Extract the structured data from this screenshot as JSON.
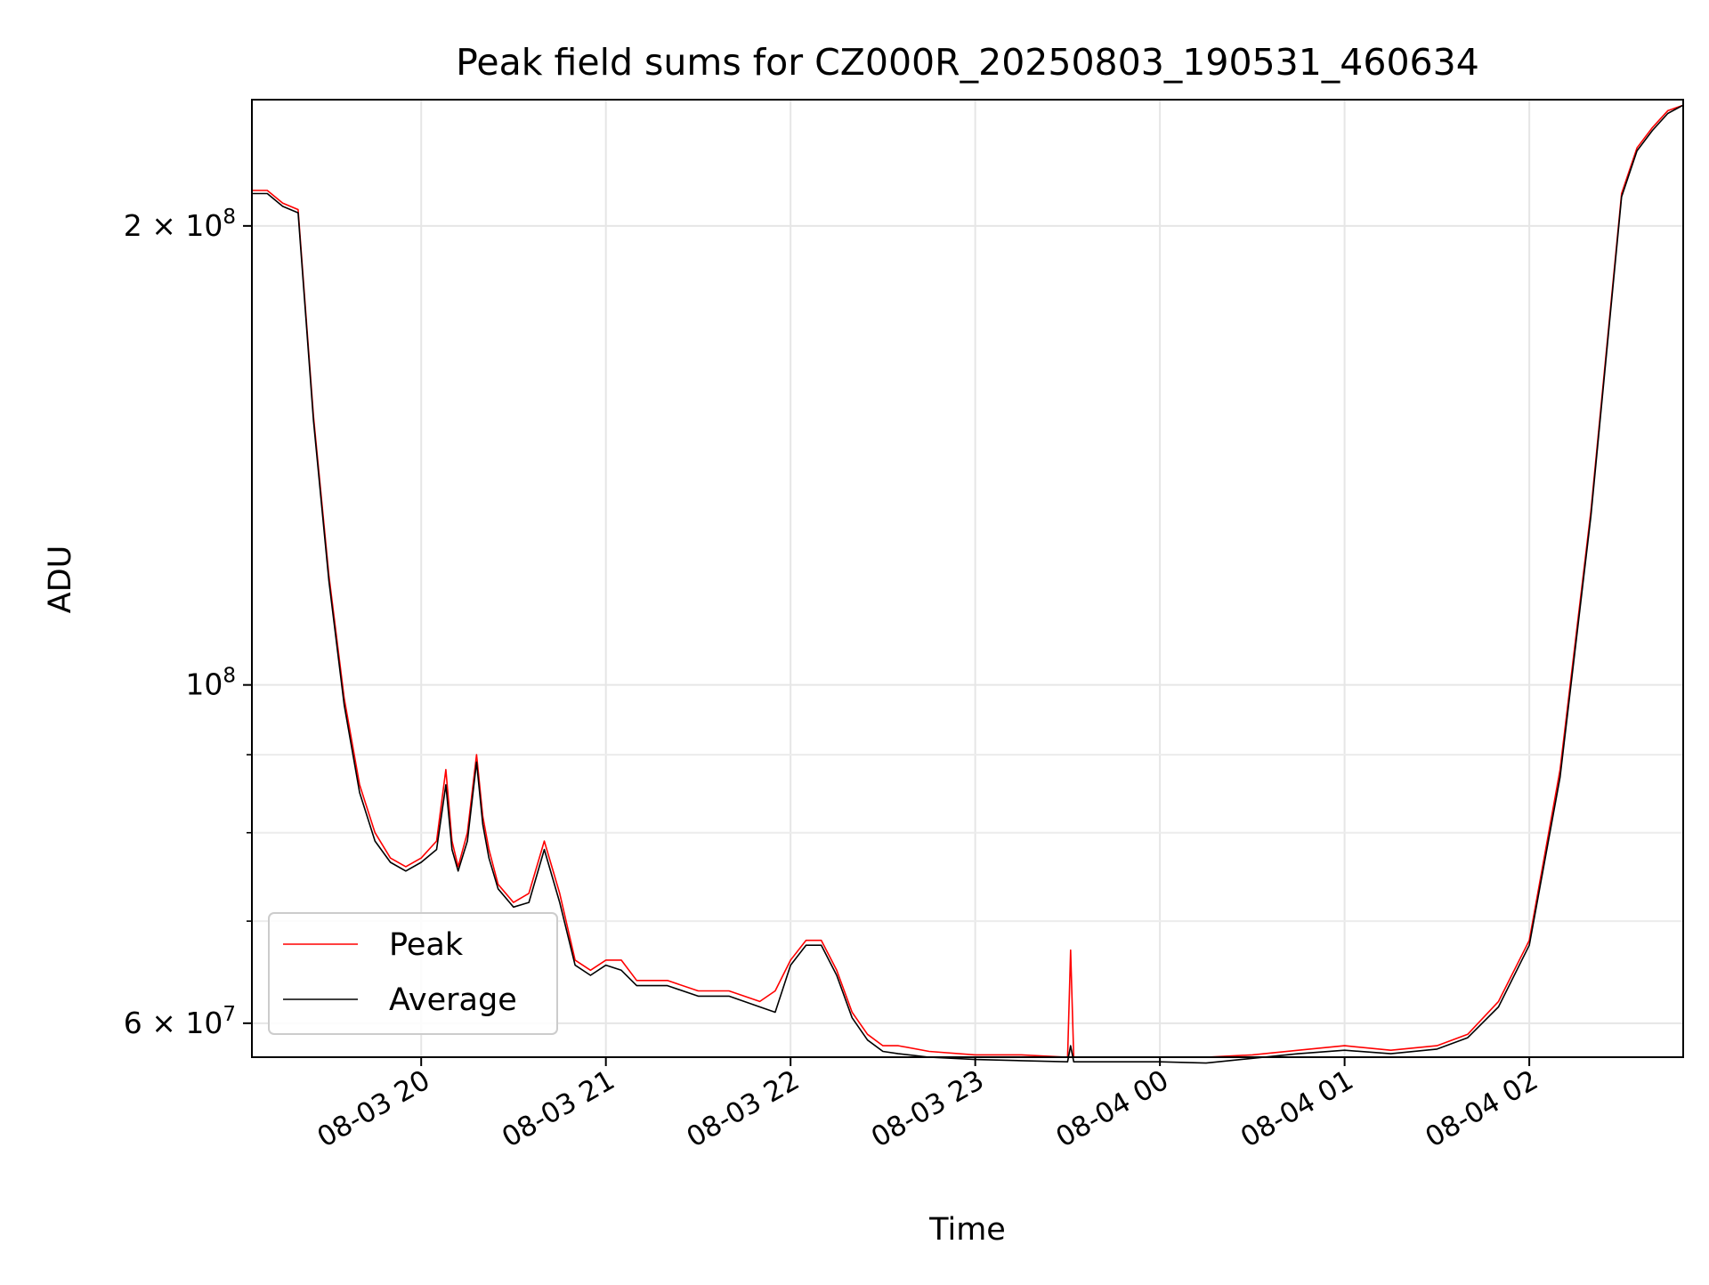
{
  "chart_data": {
    "type": "line",
    "title": "Peak field sums for CZ000R_20250803_190531_460634",
    "xlabel": "Time",
    "ylabel": "ADU",
    "yscale": "log",
    "xlim": [
      "2025-08-03 19:05",
      "2025-08-04 02:50"
    ],
    "ylim": [
      57000000,
      242000000
    ],
    "grid": true,
    "legend_position": "lower-left",
    "x_ticks": [
      {
        "value": "2025-08-03 20:00",
        "label": "08-03 20"
      },
      {
        "value": "2025-08-03 21:00",
        "label": "08-03 21"
      },
      {
        "value": "2025-08-03 22:00",
        "label": "08-03 22"
      },
      {
        "value": "2025-08-03 23:00",
        "label": "08-03 23"
      },
      {
        "value": "2025-08-04 00:00",
        "label": "08-04 00"
      },
      {
        "value": "2025-08-04 01:00",
        "label": "08-04 01"
      },
      {
        "value": "2025-08-04 02:00",
        "label": "08-04 02"
      }
    ],
    "y_ticks": [
      {
        "value": 60000000,
        "label_base": "6 × 10",
        "label_exp": "7"
      },
      {
        "value": 100000000,
        "label_base": "10",
        "label_exp": "8"
      },
      {
        "value": 200000000,
        "label_base": "2 × 10",
        "label_exp": "8"
      }
    ],
    "y_minor_ticks": [
      70000000,
      80000000,
      90000000
    ],
    "series": [
      {
        "name": "Peak",
        "color": "#ff0000",
        "x": [
          "2025-08-03 19:05",
          "2025-08-03 19:10",
          "2025-08-03 19:15",
          "2025-08-03 19:20",
          "2025-08-03 19:25",
          "2025-08-03 19:30",
          "2025-08-03 19:35",
          "2025-08-03 19:40",
          "2025-08-03 19:45",
          "2025-08-03 19:50",
          "2025-08-03 19:55",
          "2025-08-03 20:00",
          "2025-08-03 20:05",
          "2025-08-03 20:08",
          "2025-08-03 20:10",
          "2025-08-03 20:12",
          "2025-08-03 20:15",
          "2025-08-03 20:18",
          "2025-08-03 20:20",
          "2025-08-03 20:22",
          "2025-08-03 20:25",
          "2025-08-03 20:30",
          "2025-08-03 20:35",
          "2025-08-03 20:40",
          "2025-08-03 20:45",
          "2025-08-03 20:50",
          "2025-08-03 20:55",
          "2025-08-03 21:00",
          "2025-08-03 21:05",
          "2025-08-03 21:10",
          "2025-08-03 21:20",
          "2025-08-03 21:30",
          "2025-08-03 21:40",
          "2025-08-03 21:50",
          "2025-08-03 21:55",
          "2025-08-03 22:00",
          "2025-08-03 22:05",
          "2025-08-03 22:10",
          "2025-08-03 22:15",
          "2025-08-03 22:20",
          "2025-08-03 22:25",
          "2025-08-03 22:30",
          "2025-08-03 22:35",
          "2025-08-03 22:45",
          "2025-08-03 23:00",
          "2025-08-03 23:15",
          "2025-08-03 23:30",
          "2025-08-03 23:31",
          "2025-08-03 23:32",
          "2025-08-03 23:45",
          "2025-08-04 00:00",
          "2025-08-04 00:15",
          "2025-08-04 00:30",
          "2025-08-04 00:45",
          "2025-08-04 01:00",
          "2025-08-04 01:15",
          "2025-08-04 01:30",
          "2025-08-04 01:40",
          "2025-08-04 01:50",
          "2025-08-04 02:00",
          "2025-08-04 02:10",
          "2025-08-04 02:20",
          "2025-08-04 02:30",
          "2025-08-04 02:35",
          "2025-08-04 02:40",
          "2025-08-04 02:45",
          "2025-08-04 02:50"
        ],
        "values": [
          211000000,
          211000000,
          207000000,
          205000000,
          150000000,
          118000000,
          98000000,
          86000000,
          80000000,
          77000000,
          76000000,
          77000000,
          79000000,
          88000000,
          79000000,
          76000000,
          80000000,
          90000000,
          82000000,
          78000000,
          74000000,
          72000000,
          73000000,
          79000000,
          73000000,
          66000000,
          65000000,
          66000000,
          66000000,
          64000000,
          64000000,
          63000000,
          63000000,
          62000000,
          63000000,
          66000000,
          68000000,
          68000000,
          65000000,
          61000000,
          59000000,
          58000000,
          58000000,
          57500000,
          57200000,
          57200000,
          57000000,
          67000000,
          57000000,
          57000000,
          57000000,
          57000000,
          57200000,
          57600000,
          58000000,
          57600000,
          58000000,
          59000000,
          62000000,
          68000000,
          88000000,
          130000000,
          210000000,
          225000000,
          232000000,
          238000000,
          240000000
        ]
      },
      {
        "name": "Average",
        "color": "#000000",
        "x": [
          "2025-08-03 19:05",
          "2025-08-03 19:10",
          "2025-08-03 19:15",
          "2025-08-03 19:20",
          "2025-08-03 19:25",
          "2025-08-03 19:30",
          "2025-08-03 19:35",
          "2025-08-03 19:40",
          "2025-08-03 19:45",
          "2025-08-03 19:50",
          "2025-08-03 19:55",
          "2025-08-03 20:00",
          "2025-08-03 20:05",
          "2025-08-03 20:08",
          "2025-08-03 20:10",
          "2025-08-03 20:12",
          "2025-08-03 20:15",
          "2025-08-03 20:18",
          "2025-08-03 20:20",
          "2025-08-03 20:22",
          "2025-08-03 20:25",
          "2025-08-03 20:30",
          "2025-08-03 20:35",
          "2025-08-03 20:40",
          "2025-08-03 20:45",
          "2025-08-03 20:50",
          "2025-08-03 20:55",
          "2025-08-03 21:00",
          "2025-08-03 21:05",
          "2025-08-03 21:10",
          "2025-08-03 21:20",
          "2025-08-03 21:30",
          "2025-08-03 21:40",
          "2025-08-03 21:50",
          "2025-08-03 21:55",
          "2025-08-03 22:00",
          "2025-08-03 22:05",
          "2025-08-03 22:10",
          "2025-08-03 22:15",
          "2025-08-03 22:20",
          "2025-08-03 22:25",
          "2025-08-03 22:30",
          "2025-08-03 22:35",
          "2025-08-03 22:45",
          "2025-08-03 23:00",
          "2025-08-03 23:15",
          "2025-08-03 23:30",
          "2025-08-03 23:31",
          "2025-08-03 23:32",
          "2025-08-03 23:45",
          "2025-08-04 00:00",
          "2025-08-04 00:15",
          "2025-08-04 00:30",
          "2025-08-04 00:45",
          "2025-08-04 01:00",
          "2025-08-04 01:15",
          "2025-08-04 01:30",
          "2025-08-04 01:40",
          "2025-08-04 01:50",
          "2025-08-04 02:00",
          "2025-08-04 02:10",
          "2025-08-04 02:20",
          "2025-08-04 02:30",
          "2025-08-04 02:35",
          "2025-08-04 02:40",
          "2025-08-04 02:45",
          "2025-08-04 02:50"
        ],
        "values": [
          210000000,
          210000000,
          206000000,
          204000000,
          149000000,
          117000000,
          97000000,
          85000000,
          79000000,
          76500000,
          75500000,
          76500000,
          78000000,
          86000000,
          78000000,
          75500000,
          79000000,
          89000000,
          81000000,
          77000000,
          73500000,
          71500000,
          72000000,
          78000000,
          72000000,
          65500000,
          64500000,
          65500000,
          65000000,
          63500000,
          63500000,
          62500000,
          62500000,
          61500000,
          61000000,
          65500000,
          67500000,
          67500000,
          64500000,
          60500000,
          58500000,
          57500000,
          57300000,
          57000000,
          56800000,
          56700000,
          56600000,
          58000000,
          56600000,
          56600000,
          56600000,
          56500000,
          56900000,
          57300000,
          57600000,
          57300000,
          57700000,
          58700000,
          61500000,
          67500000,
          87000000,
          129000000,
          209000000,
          224000000,
          231000000,
          237000000,
          240000000
        ]
      }
    ]
  }
}
